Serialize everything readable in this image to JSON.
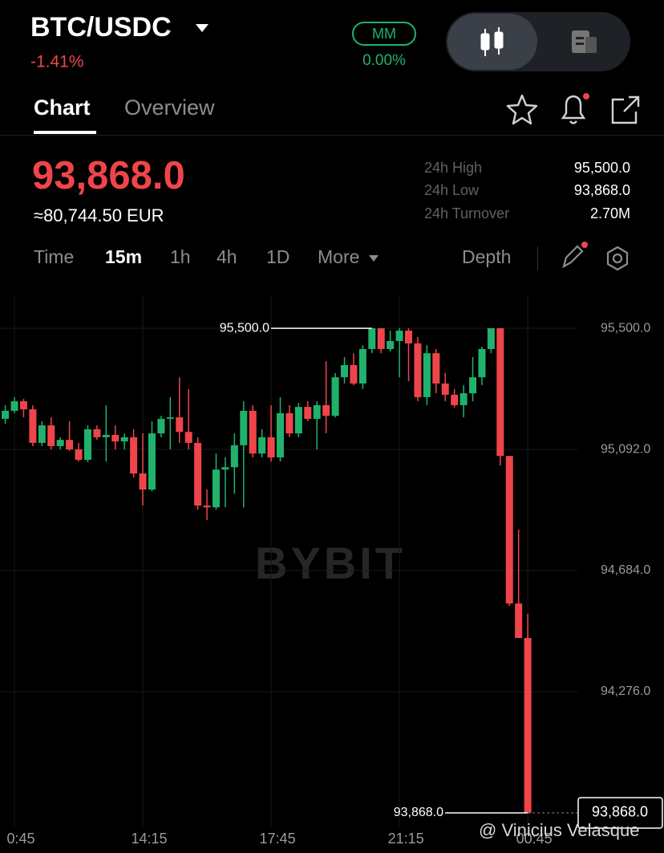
{
  "header": {
    "pair": "BTC/USDC",
    "change": "-1.41%",
    "mm_label": "MM",
    "mm_value": "0.00%"
  },
  "tabs": [
    "Chart",
    "Overview"
  ],
  "ticker": {
    "price": "93,868.0",
    "converted": "≈80,744.50 EUR",
    "stats": [
      {
        "label": "24h High",
        "value": "95,500.0"
      },
      {
        "label": "24h Low",
        "value": "93,868.0"
      },
      {
        "label": "24h Turnover",
        "value": "2.70M"
      }
    ]
  },
  "intervals": [
    "Time",
    "15m",
    "1h",
    "4h",
    "1D",
    "More"
  ],
  "depth": "Depth",
  "watermark": "BYBIT",
  "credit": "@ Vinicius Velasque",
  "chart_data": {
    "type": "candlestick",
    "categories": [
      null,
      "0:45",
      null,
      null,
      null,
      null,
      null,
      null,
      null,
      null,
      null,
      null,
      null,
      null,
      null,
      "14:15",
      null,
      null,
      null,
      null,
      null,
      null,
      null,
      null,
      null,
      null,
      null,
      null,
      null,
      "17:45",
      null,
      null,
      null,
      null,
      null,
      null,
      null,
      null,
      null,
      null,
      null,
      null,
      null,
      "21:15",
      null,
      null,
      null,
      null,
      null,
      null,
      null,
      null,
      null,
      null,
      null,
      null,
      null,
      "00:45"
    ],
    "open": [
      95195,
      95222,
      95254,
      95227,
      95114,
      95173,
      95103,
      95124,
      95092,
      95057,
      95160,
      95133,
      95141,
      95119,
      95133,
      95011,
      94957,
      95146,
      95195,
      95200,
      95151,
      95114,
      94903,
      94897,
      95024,
      95032,
      95106,
      95222,
      95078,
      95133,
      95065,
      95214,
      95146,
      95235,
      95195,
      95241,
      95205,
      95335,
      95376,
      95314,
      95430,
      95500,
      95430,
      95457,
      95492,
      95449,
      95268,
      95416,
      95314,
      95276,
      95241,
      95281,
      95335,
      95430,
      95500,
      95070,
      94573,
      94457
    ],
    "high": [
      95241,
      95268,
      95262,
      95241,
      95187,
      95200,
      95133,
      95187,
      95114,
      95173,
      95173,
      95241,
      95173,
      95146,
      95160,
      95146,
      95187,
      95205,
      95268,
      95335,
      95295,
      95133,
      94957,
      95078,
      95065,
      95146,
      95254,
      95241,
      95160,
      95241,
      95268,
      95241,
      95249,
      95254,
      95254,
      95389,
      95349,
      95403,
      95416,
      95443,
      95500,
      95500,
      95492,
      95500,
      95500,
      95470,
      95443,
      95430,
      95349,
      95295,
      95308,
      95403,
      95438,
      95500,
      95500,
      95070,
      94822,
      94538
    ],
    "low": [
      95178,
      95214,
      95200,
      95103,
      95103,
      95092,
      95092,
      95087,
      95051,
      95049,
      95124,
      95051,
      95092,
      95092,
      94997,
      94903,
      94951,
      95133,
      95092,
      95114,
      95092,
      94889,
      94854,
      94889,
      94897,
      94943,
      94897,
      95065,
      95065,
      95051,
      95051,
      95133,
      95133,
      95187,
      95092,
      95146,
      95200,
      95314,
      95308,
      95295,
      95416,
      95416,
      95422,
      95335,
      95322,
      95254,
      95241,
      95281,
      95254,
      95233,
      95200,
      95254,
      95308,
      95416,
      95038,
      94565,
      94457,
      93868
    ],
    "close": [
      95222,
      95254,
      95227,
      95114,
      95173,
      95103,
      95124,
      95092,
      95057,
      95160,
      95133,
      95141,
      95119,
      95133,
      95011,
      94957,
      95146,
      95195,
      95200,
      95151,
      95114,
      94903,
      94897,
      95024,
      95032,
      95106,
      95222,
      95078,
      95133,
      95065,
      95214,
      95146,
      95235,
      95195,
      95241,
      95205,
      95335,
      95376,
      95314,
      95430,
      95500,
      95430,
      95457,
      95492,
      95449,
      95268,
      95416,
      95314,
      95276,
      95241,
      95281,
      95335,
      95430,
      95500,
      95070,
      94573,
      94457,
      93868
    ],
    "up_color": "#20b26c",
    "down_color": "#ef454a",
    "ylim": [
      93822,
      95611
    ],
    "yticks": [
      {
        "value": 95500,
        "label": "95,500.0"
      },
      {
        "value": 95092,
        "label": "95,092.0"
      },
      {
        "value": 94684,
        "label": "94,684.0"
      },
      {
        "value": 94276,
        "label": "94,276.0"
      }
    ],
    "grid": true,
    "max_marker": {
      "value": 95500,
      "label": "95,500.0"
    },
    "min_marker": {
      "value": 93868,
      "label": "93,868.0"
    },
    "last_price": {
      "value": 93868,
      "label": "93,868.0"
    }
  }
}
